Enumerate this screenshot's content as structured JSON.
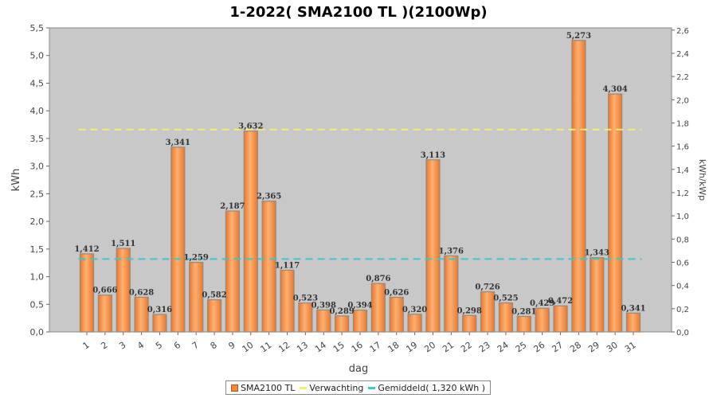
{
  "chart_data": {
    "type": "bar",
    "title": "1-2022( SMA2100 TL )(2100Wp)",
    "xlabel": "dag",
    "ylabel": "kWh",
    "y2label": "kWh/kWp",
    "categories": [
      "1",
      "2",
      "3",
      "4",
      "5",
      "6",
      "7",
      "8",
      "9",
      "10",
      "11",
      "12",
      "13",
      "14",
      "15",
      "16",
      "17",
      "18",
      "19",
      "20",
      "21",
      "22",
      "23",
      "24",
      "25",
      "26",
      "27",
      "28",
      "29",
      "30",
      "31"
    ],
    "series": [
      {
        "name": "SMA2100 TL",
        "values": [
          1.412,
          0.666,
          1.511,
          0.628,
          0.316,
          3.341,
          1.259,
          0.582,
          2.187,
          3.632,
          2.365,
          1.117,
          0.523,
          0.398,
          0.289,
          0.394,
          0.876,
          0.626,
          0.32,
          3.113,
          1.376,
          0.298,
          0.726,
          0.525,
          0.281,
          0.429,
          0.472,
          5.273,
          1.343,
          4.304,
          0.341
        ],
        "value_labels": [
          "1,412",
          "0,666",
          "1,511",
          "0,628",
          "0,316",
          "3,341",
          "1,259",
          "0,582",
          "2,187",
          "3,632",
          "2,365",
          "1,117",
          "0,523",
          "0,398",
          "0,289",
          "0,394",
          "0,876",
          "0,626",
          "0,320",
          "3,113",
          "1,376",
          "0,298",
          "0,726",
          "0,525",
          "0,281",
          "0,429",
          "0,472",
          "5,273",
          "1,343",
          "4,304",
          "0,341"
        ]
      }
    ],
    "reference_lines": [
      {
        "name": "Verwachting",
        "value": 3.66,
        "color": "#f0f070"
      },
      {
        "name": "Gemiddeld( 1,320 kWh )",
        "value": 1.32,
        "color": "#3cc8c8"
      }
    ],
    "ylim": [
      0,
      5.5
    ],
    "y_ticks": [
      0,
      0.5,
      1.0,
      1.5,
      2.0,
      2.5,
      3.0,
      3.5,
      4.0,
      4.5,
      5.0,
      5.5
    ],
    "y_tick_labels": [
      "0,0",
      "0,5",
      "1,0",
      "1,5",
      "2,0",
      "2,5",
      "3,0",
      "3,5",
      "4,0",
      "4,5",
      "5,0",
      "5,5"
    ],
    "y2lim": [
      0,
      2.619
    ],
    "y2_ticks": [
      0,
      0.2,
      0.4,
      0.6,
      0.8,
      1.0,
      1.2,
      1.4,
      1.6,
      1.8,
      2.0,
      2.2,
      2.4,
      2.6
    ],
    "y2_tick_labels": [
      "0,0",
      "0,2",
      "0,4",
      "0,6",
      "0,8",
      "1,0",
      "1,2",
      "1,4",
      "1,6",
      "1,8",
      "2,0",
      "2,2",
      "2,4",
      "2,6"
    ],
    "grid": false,
    "legend": "bottom-center",
    "colors": {
      "bar": "#f08838",
      "bar_border": "#9a8878",
      "plot_bg": "#c8c8c8"
    }
  },
  "legend": {
    "bar_label": "SMA2100 TL",
    "expected_label": "Verwachting",
    "average_label": "Gemiddeld( 1,320 kWh )"
  }
}
